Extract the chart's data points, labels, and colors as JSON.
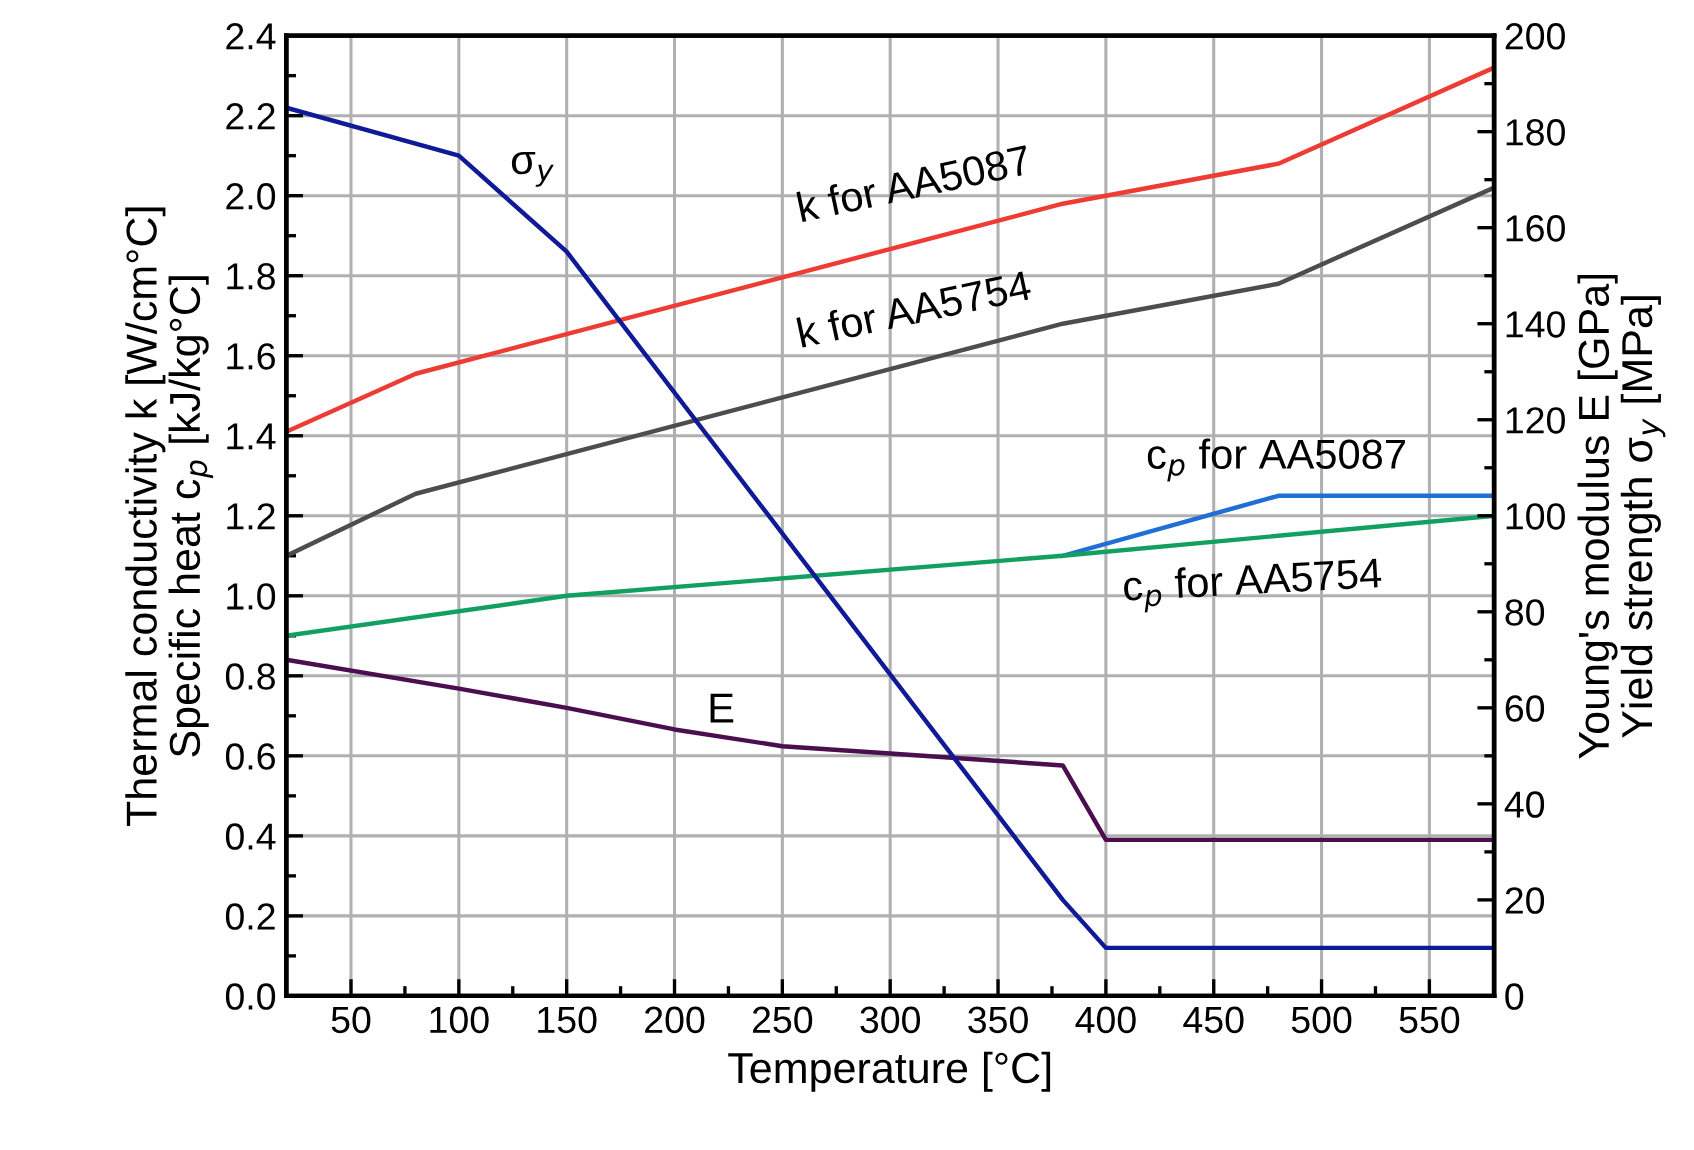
{
  "chart_data": {
    "type": "line",
    "xlabel": "Temperature [°C]",
    "ylabel": "Thermal conductivity k [W/cm°C]\nSpecific heat c$_{p}$ [kJ/kg°C]",
    "y2label": "Young's modulus E [GPa]\nYield strength σ$_{y}$ [MPa]",
    "xlim": [
      20,
      580
    ],
    "xticks": [
      50,
      100,
      150,
      200,
      250,
      300,
      350,
      400,
      450,
      500,
      550
    ],
    "ylim": [
      0,
      2.4
    ],
    "yticks": [
      {
        "value": 0,
        "label": "0.0"
      },
      {
        "value": 0.2,
        "label": "0.2"
      },
      {
        "value": 0.4,
        "label": "0.4"
      },
      {
        "value": 0.6,
        "label": "0.6"
      },
      {
        "value": 0.8,
        "label": "0.8"
      },
      {
        "value": 1.0,
        "label": "1.0"
      },
      {
        "value": 1.2,
        "label": "1.2"
      },
      {
        "value": 1.4,
        "label": "1.4"
      },
      {
        "value": 1.6,
        "label": "1.6"
      },
      {
        "value": 1.8,
        "label": "1.8"
      },
      {
        "value": 2.0,
        "label": "2.0"
      },
      {
        "value": 2.2,
        "label": "2.2"
      },
      {
        "value": 2.4,
        "label": "2.4"
      }
    ],
    "y2lim": [
      0,
      200
    ],
    "y2ticks": [
      0,
      20,
      40,
      60,
      80,
      100,
      120,
      140,
      160,
      180,
      200
    ],
    "grid": true,
    "series": [
      {
        "name": "k for AA5087",
        "color": "#ee3b34",
        "x": [
          20,
          80,
          380,
          480,
          580
        ],
        "values": [
          1.41,
          1.555,
          1.98,
          2.08,
          2.32
        ]
      },
      {
        "name": "k for AA5754",
        "color": "#4d4d4d",
        "x": [
          20,
          80,
          380,
          480,
          580
        ],
        "values": [
          1.1,
          1.255,
          1.68,
          1.78,
          2.02
        ]
      },
      {
        "name": "c$_{p}$ for AA5087",
        "color": "#1f6fd6",
        "x": [
          380,
          480,
          580
        ],
        "values": [
          1.1,
          1.25,
          1.25
        ]
      },
      {
        "name": "c$_{p}$ for AA5754",
        "color": "#12a060",
        "x": [
          20,
          150,
          380,
          580
        ],
        "values": [
          0.9,
          1.0,
          1.1,
          1.2
        ]
      },
      {
        "name": "E",
        "color": "#4b0f4f",
        "axis": "y2",
        "x": [
          20,
          100,
          150,
          200,
          250,
          300,
          380,
          400,
          580
        ],
        "values": [
          70,
          64,
          60,
          55.5,
          52,
          50.5,
          48,
          32.5,
          32.5
        ]
      },
      {
        "name": "σ$_{y}$",
        "color": "#101a96",
        "axis": "y2",
        "x": [
          20,
          100,
          150,
          380,
          400,
          580
        ],
        "values": [
          185,
          175,
          155,
          20,
          10,
          10
        ]
      }
    ]
  }
}
